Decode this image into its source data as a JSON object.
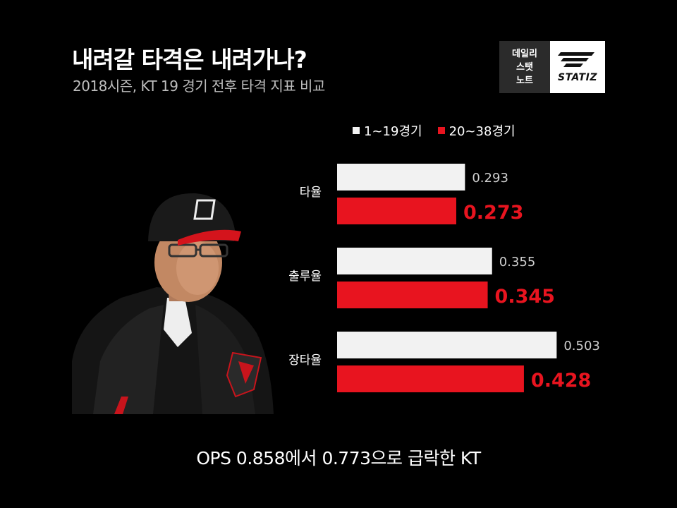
{
  "header": {
    "title": "내려갈 타격은 내려가나?",
    "subtitle": "2018시즌, KT 19 경기 전후 타격 지표 비교"
  },
  "badge": {
    "lines": [
      "데일리",
      "스탯",
      "노트"
    ],
    "brand": "STATIZ"
  },
  "footer": "OPS 0.858에서 0.773으로 급락한 KT",
  "photo": {
    "description_icon": "coach-portrait"
  },
  "colors": {
    "series1": "#f2f2f2",
    "series2": "#e8141f",
    "background": "#000000"
  },
  "chart_data": {
    "type": "bar",
    "orientation": "horizontal",
    "categories": [
      "타율",
      "출루율",
      "장타율"
    ],
    "series": [
      {
        "name": "1~19경기",
        "values": [
          0.293,
          0.355,
          0.503
        ],
        "color": "#f2f2f2"
      },
      {
        "name": "20~38경기",
        "values": [
          0.273,
          0.345,
          0.428
        ],
        "color": "#e8141f"
      }
    ],
    "value_labels": [
      [
        "0.293",
        "0.355",
        "0.503"
      ],
      [
        "0.273",
        "0.345",
        "0.428"
      ]
    ],
    "xlim": [
      0,
      0.6
    ],
    "grid": false,
    "legend": "top"
  }
}
